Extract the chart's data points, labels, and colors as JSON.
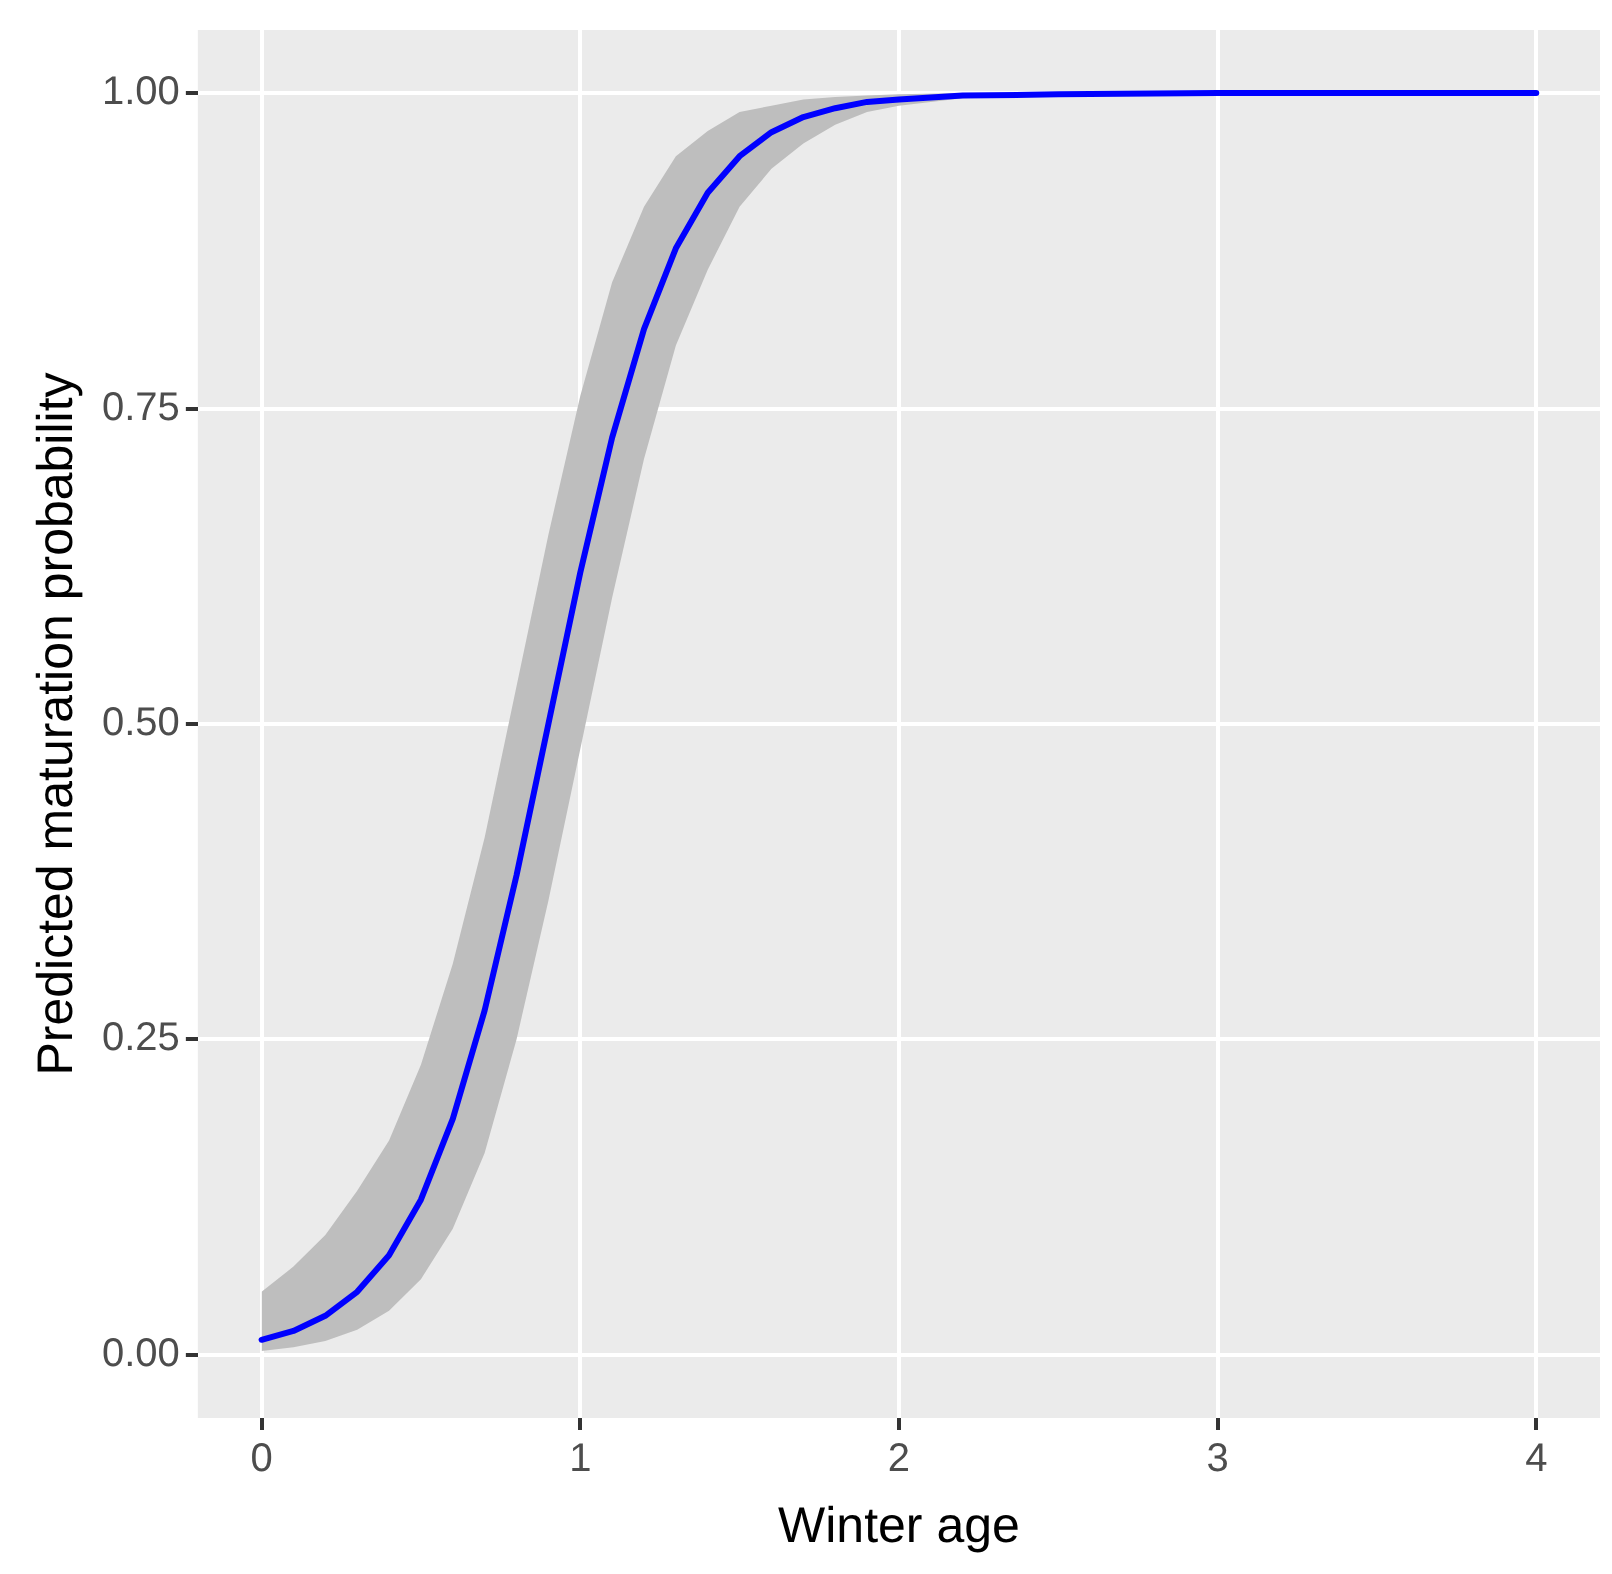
{
  "chart_data": {
    "type": "line",
    "xlabel": "Winter age",
    "ylabel": "Predicted maturation probability",
    "xlim": [
      -0.2,
      4.2
    ],
    "xticks": [
      0,
      1,
      2,
      3,
      4
    ],
    "ylim": [
      -0.05,
      1.05
    ],
    "yticks": [
      {
        "value": 0,
        "label": "0.00"
      },
      {
        "value": 0.25,
        "label": "0.25"
      },
      {
        "value": 0.5,
        "label": "0.50"
      },
      {
        "value": 0.75,
        "label": "0.75"
      },
      {
        "value": 1,
        "label": "1.00"
      }
    ],
    "grid": true,
    "legend": false,
    "marker": "none",
    "line_style": "solid",
    "x": [
      0,
      0.1,
      0.2,
      0.3,
      0.4,
      0.5,
      0.6,
      0.7,
      0.8,
      0.9,
      1.0,
      1.1,
      1.2,
      1.3,
      1.4,
      1.5,
      1.6,
      1.7,
      1.8,
      1.9,
      2.0,
      2.2,
      2.5,
      3,
      3.5,
      4
    ],
    "series": [
      {
        "color": "#0000ff",
        "values": [
          0.012,
          0.019,
          0.031,
          0.05,
          0.079,
          0.123,
          0.187,
          0.273,
          0.38,
          0.5,
          0.62,
          0.727,
          0.813,
          0.877,
          0.921,
          0.95,
          0.969,
          0.981,
          0.988,
          0.993,
          0.995,
          0.998,
          0.999,
          1,
          1,
          1
        ],
        "upper": [
          0.05,
          0.07,
          0.095,
          0.13,
          0.17,
          0.23,
          0.31,
          0.41,
          0.53,
          0.65,
          0.76,
          0.85,
          0.91,
          0.95,
          0.97,
          0.985,
          0.99,
          0.995,
          0.997,
          0.998,
          0.999,
          1,
          1,
          1,
          1,
          1
        ],
        "lower": [
          0.003,
          0.006,
          0.011,
          0.02,
          0.035,
          0.06,
          0.1,
          0.16,
          0.25,
          0.36,
          0.48,
          0.6,
          0.71,
          0.8,
          0.86,
          0.91,
          0.94,
          0.96,
          0.975,
          0.985,
          0.99,
          0.996,
          0.999,
          1,
          1,
          1
        ]
      }
    ]
  }
}
